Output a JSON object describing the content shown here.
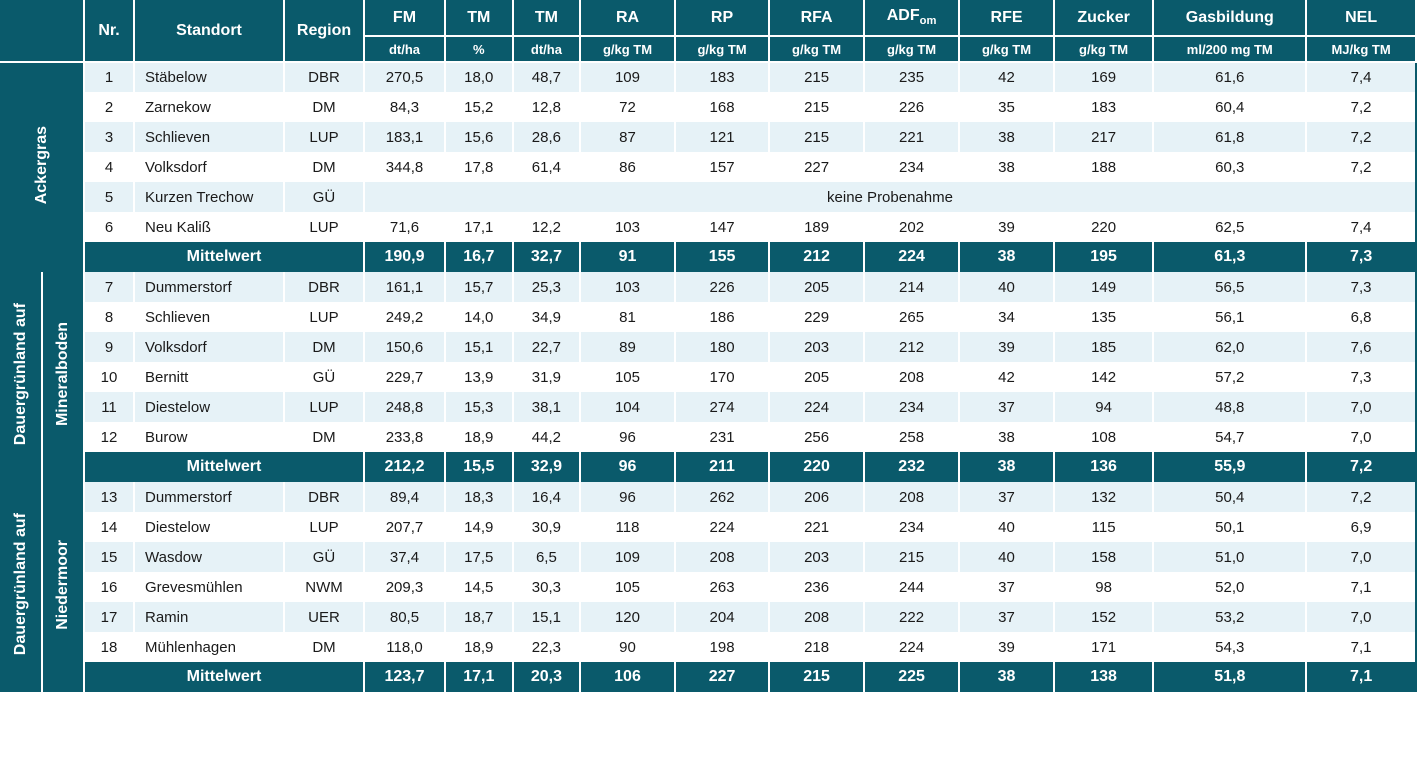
{
  "colors": {
    "teal": "#0a5a6b",
    "white": "#ffffff",
    "row_light": "#e6f2f7",
    "row_white": "#ffffff",
    "text": "#1a1a1a"
  },
  "header": {
    "nr": "Nr.",
    "standort": "Standort",
    "region": "Region",
    "fm": "FM",
    "tm_pct": "TM",
    "tm": "TM",
    "ra": "RA",
    "rp": "RP",
    "rfa": "RFA",
    "adf": "ADF",
    "adf_sub": "om",
    "rfe": "RFE",
    "zucker": "Zucker",
    "gas": "Gasbildung",
    "nel": "NEL"
  },
  "units": {
    "fm": "dt/ha",
    "tm_pct": "%",
    "tm": "dt/ha",
    "ra": "g/kg TM",
    "rp": "g/kg TM",
    "rfa": "g/kg TM",
    "adf": "g/kg TM",
    "rfe": "g/kg TM",
    "zucker": "g/kg TM",
    "gas": "ml/200 mg TM",
    "nel": "MJ/kg TM"
  },
  "labels": {
    "mittelwert": "Mittelwert",
    "no_sample": "keine Probenahme"
  },
  "groups": [
    {
      "title_a": "Ackergras",
      "title_b": "",
      "rows": [
        {
          "nr": "1",
          "loc": "Stäbelow",
          "reg": "DBR",
          "v": [
            "270,5",
            "18,0",
            "48,7",
            "109",
            "183",
            "215",
            "235",
            "42",
            "169",
            "61,6",
            "7,4"
          ]
        },
        {
          "nr": "2",
          "loc": "Zarnekow",
          "reg": "DM",
          "v": [
            "84,3",
            "15,2",
            "12,8",
            "72",
            "168",
            "215",
            "226",
            "35",
            "183",
            "60,4",
            "7,2"
          ]
        },
        {
          "nr": "3",
          "loc": "Schlieven",
          "reg": "LUP",
          "v": [
            "183,1",
            "15,6",
            "28,6",
            "87",
            "121",
            "215",
            "221",
            "38",
            "217",
            "61,8",
            "7,2"
          ]
        },
        {
          "nr": "4",
          "loc": "Volksdorf",
          "reg": "DM",
          "v": [
            "344,8",
            "17,8",
            "61,4",
            "86",
            "157",
            "227",
            "234",
            "38",
            "188",
            "60,3",
            "7,2"
          ]
        },
        {
          "nr": "5",
          "loc": "Kurzen Trechow",
          "reg": "GÜ",
          "no_sample": true
        },
        {
          "nr": "6",
          "loc": "Neu Kaliß",
          "reg": "LUP",
          "v": [
            "71,6",
            "17,1",
            "12,2",
            "103",
            "147",
            "189",
            "202",
            "39",
            "220",
            "62,5",
            "7,4"
          ]
        }
      ],
      "mean": [
        "190,9",
        "16,7",
        "32,7",
        "91",
        "155",
        "212",
        "224",
        "38",
        "195",
        "61,3",
        "7,3"
      ]
    },
    {
      "title_a": "Dauergrünland auf",
      "title_b": "Mineralboden",
      "rows": [
        {
          "nr": "7",
          "loc": "Dummerstorf",
          "reg": "DBR",
          "v": [
            "161,1",
            "15,7",
            "25,3",
            "103",
            "226",
            "205",
            "214",
            "40",
            "149",
            "56,5",
            "7,3"
          ]
        },
        {
          "nr": "8",
          "loc": "Schlieven",
          "reg": "LUP",
          "v": [
            "249,2",
            "14,0",
            "34,9",
            "81",
            "186",
            "229",
            "265",
            "34",
            "135",
            "56,1",
            "6,8"
          ]
        },
        {
          "nr": "9",
          "loc": "Volksdorf",
          "reg": "DM",
          "v": [
            "150,6",
            "15,1",
            "22,7",
            "89",
            "180",
            "203",
            "212",
            "39",
            "185",
            "62,0",
            "7,6"
          ]
        },
        {
          "nr": "10",
          "loc": "Bernitt",
          "reg": "GÜ",
          "v": [
            "229,7",
            "13,9",
            "31,9",
            "105",
            "170",
            "205",
            "208",
            "42",
            "142",
            "57,2",
            "7,3"
          ]
        },
        {
          "nr": "11",
          "loc": "Diestelow",
          "reg": "LUP",
          "v": [
            "248,8",
            "15,3",
            "38,1",
            "104",
            "274",
            "224",
            "234",
            "37",
            "94",
            "48,8",
            "7,0"
          ]
        },
        {
          "nr": "12",
          "loc": "Burow",
          "reg": "DM",
          "v": [
            "233,8",
            "18,9",
            "44,2",
            "96",
            "231",
            "256",
            "258",
            "38",
            "108",
            "54,7",
            "7,0"
          ]
        }
      ],
      "mean": [
        "212,2",
        "15,5",
        "32,9",
        "96",
        "211",
        "220",
        "232",
        "38",
        "136",
        "55,9",
        "7,2"
      ]
    },
    {
      "title_a": "Dauergrünland auf",
      "title_b": "Niedermoor",
      "rows": [
        {
          "nr": "13",
          "loc": "Dummerstorf",
          "reg": "DBR",
          "v": [
            "89,4",
            "18,3",
            "16,4",
            "96",
            "262",
            "206",
            "208",
            "37",
            "132",
            "50,4",
            "7,2"
          ]
        },
        {
          "nr": "14",
          "loc": "Diestelow",
          "reg": "LUP",
          "v": [
            "207,7",
            "14,9",
            "30,9",
            "118",
            "224",
            "221",
            "234",
            "40",
            "115",
            "50,1",
            "6,9"
          ]
        },
        {
          "nr": "15",
          "loc": "Wasdow",
          "reg": "GÜ",
          "v": [
            "37,4",
            "17,5",
            "6,5",
            "109",
            "208",
            "203",
            "215",
            "40",
            "158",
            "51,0",
            "7,0"
          ]
        },
        {
          "nr": "16",
          "loc": "Grevesmühlen",
          "reg": "NWM",
          "v": [
            "209,3",
            "14,5",
            "30,3",
            "105",
            "263",
            "236",
            "244",
            "37",
            "98",
            "52,0",
            "7,1"
          ]
        },
        {
          "nr": "17",
          "loc": "Ramin",
          "reg": "UER",
          "v": [
            "80,5",
            "18,7",
            "15,1",
            "120",
            "204",
            "208",
            "222",
            "37",
            "152",
            "53,2",
            "7,0"
          ]
        },
        {
          "nr": "18",
          "loc": "Mühlenhagen",
          "reg": "DM",
          "v": [
            "118,0",
            "18,9",
            "22,3",
            "90",
            "198",
            "218",
            "224",
            "39",
            "171",
            "54,3",
            "7,1"
          ]
        }
      ],
      "mean": [
        "123,7",
        "17,1",
        "20,3",
        "106",
        "227",
        "215",
        "225",
        "38",
        "138",
        "51,8",
        "7,1"
      ]
    }
  ]
}
